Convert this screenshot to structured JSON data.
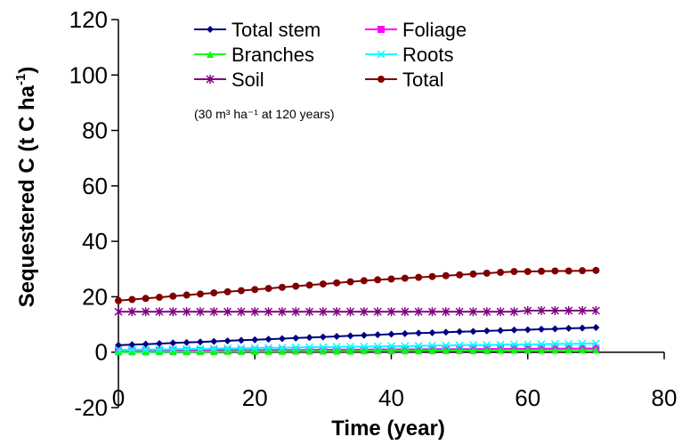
{
  "chart_data": {
    "type": "line",
    "title": "",
    "xlabel": "Time   (year)",
    "ylabel": "Sequestered C (t C ha-1)",
    "ylabel_main": "Sequestered C (t C ha",
    "ylabel_sup": "-1",
    "ylabel_close": ")",
    "xlim": [
      0,
      80
    ],
    "ylim": [
      -20,
      120
    ],
    "xticks": [
      0,
      20,
      40,
      60,
      80
    ],
    "yticks": [
      -20,
      0,
      20,
      40,
      60,
      80,
      100,
      120
    ],
    "x": [
      0,
      2,
      4,
      6,
      8,
      10,
      12,
      14,
      16,
      18,
      20,
      22,
      24,
      26,
      28,
      30,
      32,
      34,
      36,
      38,
      40,
      42,
      44,
      46,
      48,
      50,
      52,
      54,
      56,
      58,
      60,
      62,
      64,
      66,
      68,
      70
    ],
    "annotation": "(30 m³ ha⁻¹ at 120 years)",
    "legend_position": "top-center",
    "series": [
      {
        "name": "Total stem",
        "color": "#000080",
        "marker": "diamond",
        "values": [
          2.5,
          2.7,
          2.9,
          3.1,
          3.3,
          3.5,
          3.7,
          3.9,
          4.1,
          4.3,
          4.5,
          4.7,
          4.9,
          5.1,
          5.3,
          5.5,
          5.7,
          5.9,
          6.1,
          6.3,
          6.5,
          6.7,
          6.9,
          7.0,
          7.2,
          7.4,
          7.5,
          7.7,
          7.8,
          8.0,
          8.1,
          8.3,
          8.4,
          8.6,
          8.7,
          8.9
        ]
      },
      {
        "name": "Foliage",
        "color": "#ff00ff",
        "marker": "square",
        "values": [
          0.5,
          0.5,
          0.5,
          0.6,
          0.6,
          0.6,
          0.6,
          0.7,
          0.7,
          0.7,
          0.7,
          0.8,
          0.8,
          0.8,
          0.8,
          0.9,
          0.9,
          0.9,
          0.9,
          1.0,
          1.0,
          1.0,
          1.0,
          1.1,
          1.1,
          1.1,
          1.1,
          1.2,
          1.2,
          1.2,
          1.2,
          1.3,
          1.3,
          1.3,
          1.3,
          1.4
        ]
      },
      {
        "name": "Branches",
        "color": "#00ff00",
        "marker": "triangle",
        "values": [
          0.1,
          0.1,
          0.1,
          0.2,
          0.2,
          0.2,
          0.2,
          0.2,
          0.3,
          0.3,
          0.3,
          0.3,
          0.3,
          0.4,
          0.4,
          0.4,
          0.4,
          0.4,
          0.5,
          0.5,
          0.5,
          0.5,
          0.5,
          0.6,
          0.6,
          0.6,
          0.6,
          0.6,
          0.7,
          0.7,
          0.7,
          0.7,
          0.7,
          0.8,
          0.8,
          0.8
        ]
      },
      {
        "name": "Roots",
        "color": "#00ffff",
        "marker": "x",
        "values": [
          0.8,
          0.9,
          1.0,
          1.0,
          1.1,
          1.2,
          1.2,
          1.3,
          1.4,
          1.4,
          1.5,
          1.6,
          1.6,
          1.7,
          1.8,
          1.8,
          1.9,
          2.0,
          2.0,
          2.1,
          2.2,
          2.2,
          2.3,
          2.4,
          2.4,
          2.5,
          2.6,
          2.6,
          2.7,
          2.8,
          2.8,
          2.9,
          3.0,
          3.0,
          3.1,
          3.2
        ]
      },
      {
        "name": "Soil",
        "color": "#800080",
        "marker": "star",
        "values": [
          14.6,
          14.6,
          14.6,
          14.6,
          14.6,
          14.6,
          14.6,
          14.6,
          14.6,
          14.6,
          14.6,
          14.6,
          14.6,
          14.6,
          14.6,
          14.6,
          14.6,
          14.6,
          14.6,
          14.6,
          14.6,
          14.6,
          14.6,
          14.6,
          14.6,
          14.6,
          14.6,
          14.6,
          14.6,
          14.6,
          15.0,
          15.0,
          15.0,
          15.0,
          15.0,
          15.0
        ]
      },
      {
        "name": "Total",
        "color": "#800000",
        "marker": "circle",
        "values": [
          18.6,
          19.0,
          19.4,
          19.8,
          20.2,
          20.6,
          21.0,
          21.4,
          21.8,
          22.2,
          22.6,
          23.0,
          23.4,
          23.8,
          24.2,
          24.6,
          25.0,
          25.4,
          25.8,
          26.1,
          26.4,
          26.7,
          27.0,
          27.3,
          27.6,
          27.9,
          28.2,
          28.5,
          28.8,
          29.1,
          29.1,
          29.2,
          29.3,
          29.3,
          29.4,
          29.5
        ]
      }
    ]
  }
}
